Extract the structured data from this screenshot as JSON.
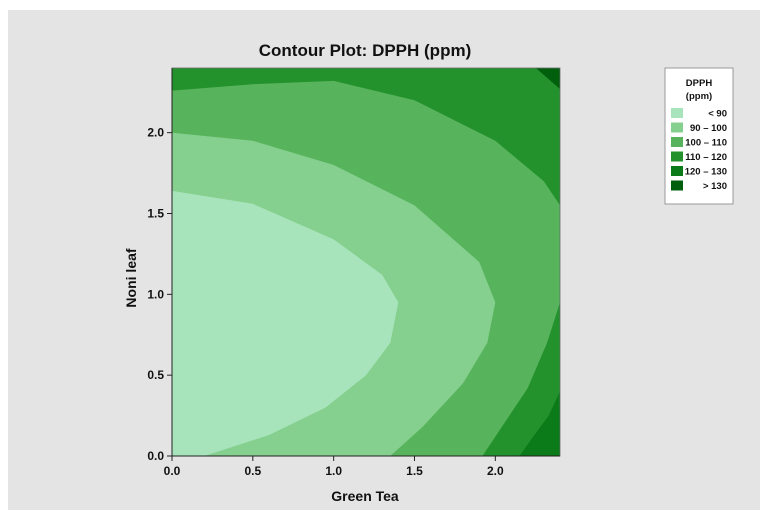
{
  "chart_data": {
    "type": "contour",
    "title": "Contour Plot: DPPH (ppm)",
    "xlabel": "Green Tea",
    "ylabel": "Noni leaf",
    "xlim": [
      0,
      2.4
    ],
    "ylim": [
      0,
      2.4
    ],
    "xticks": [
      {
        "value": 0.0,
        "label": "0.0"
      },
      {
        "value": 0.5,
        "label": "0.5"
      },
      {
        "value": 1.0,
        "label": "1.0"
      },
      {
        "value": 1.5,
        "label": "1.5"
      },
      {
        "value": 2.0,
        "label": "2.0"
      }
    ],
    "yticks": [
      {
        "value": 0.0,
        "label": "0.0"
      },
      {
        "value": 0.5,
        "label": "0.5"
      },
      {
        "value": 1.0,
        "label": "1.0"
      },
      {
        "value": 1.5,
        "label": "1.5"
      },
      {
        "value": 2.0,
        "label": "2.0"
      }
    ],
    "legend": {
      "title_line1": "DPPH",
      "title_line2": "(ppm)",
      "placement": "right",
      "entries": [
        {
          "label": "< 90",
          "color": "#a8e4bb"
        },
        {
          "label": "90 – 100",
          "color": "#85d08f"
        },
        {
          "label": "100 – 110",
          "color": "#58b45c"
        },
        {
          "label": "110 – 120",
          "color": "#23922d"
        },
        {
          "label": "120 – 130",
          "color": "#0b7a18"
        },
        {
          "label": "> 130",
          "color": "#005f0d"
        }
      ]
    },
    "levels": [
      {
        "label": "< 90",
        "color": "#a8e4bb",
        "boundary": [
          [
            0,
            1.64
          ],
          [
            0.5,
            1.56
          ],
          [
            1.0,
            1.34
          ],
          [
            1.3,
            1.12
          ],
          [
            1.4,
            0.95
          ],
          [
            1.35,
            0.7
          ],
          [
            1.2,
            0.5
          ],
          [
            0.95,
            0.3
          ],
          [
            0.6,
            0.13
          ],
          [
            0.2,
            0
          ]
        ]
      },
      {
        "label": "90 – 100",
        "color": "#85d08f",
        "boundary": [
          [
            0,
            2.0
          ],
          [
            0.5,
            1.95
          ],
          [
            1.0,
            1.8
          ],
          [
            1.5,
            1.55
          ],
          [
            1.9,
            1.2
          ],
          [
            2.0,
            0.95
          ],
          [
            1.95,
            0.7
          ],
          [
            1.8,
            0.45
          ],
          [
            1.55,
            0.18
          ],
          [
            1.35,
            0
          ]
        ]
      },
      {
        "label": "100 – 110",
        "color": "#58b45c",
        "boundary": [
          [
            0,
            2.26
          ],
          [
            0.5,
            2.3
          ],
          [
            1.0,
            2.32
          ],
          [
            1.5,
            2.2
          ],
          [
            2.0,
            1.95
          ],
          [
            2.3,
            1.7
          ],
          [
            2.4,
            1.55
          ]
        ]
      },
      {
        "label": "110 – 120",
        "color": "#23922d",
        "boundary": [
          [
            1.9,
            2.4
          ],
          [
            2.1,
            2.3
          ],
          [
            2.3,
            2.1
          ],
          [
            2.4,
            2.0
          ]
        ]
      },
      {
        "label": "120 – 130",
        "color": "#0b7a18",
        "boundary": [
          [
            2.25,
            2.4
          ],
          [
            2.4,
            2.27
          ]
        ]
      },
      {
        "label": "110 – 120",
        "color": "#23922d",
        "boundary": [
          [
            2.4,
            0.95
          ],
          [
            2.32,
            0.7
          ],
          [
            2.2,
            0.42
          ],
          [
            2.02,
            0.15
          ],
          [
            1.92,
            0
          ]
        ]
      },
      {
        "label": "120 – 130",
        "color": "#0b7a18",
        "boundary": [
          [
            2.4,
            0.4
          ],
          [
            2.33,
            0.25
          ],
          [
            2.22,
            0.1
          ],
          [
            2.15,
            0
          ]
        ]
      }
    ]
  }
}
